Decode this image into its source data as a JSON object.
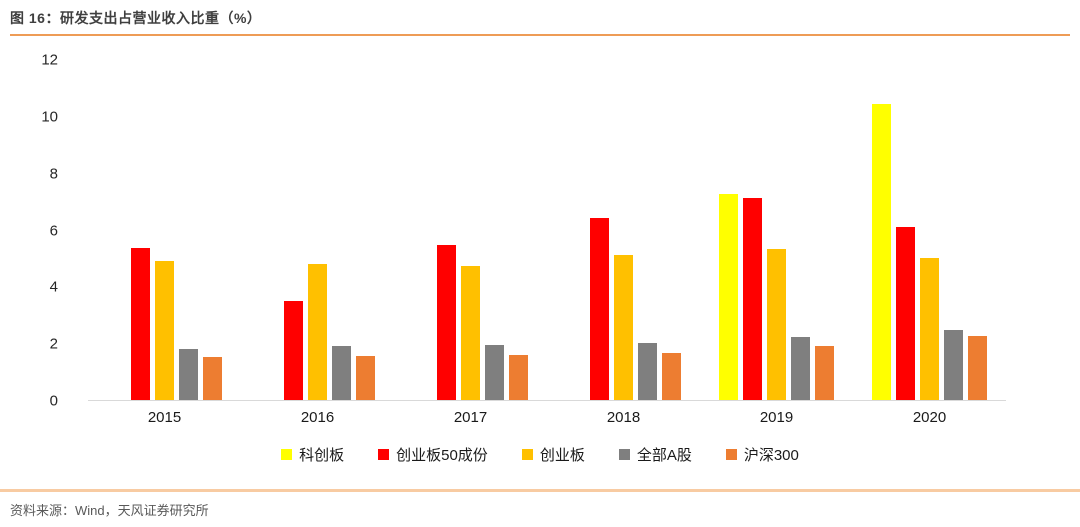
{
  "header": {
    "title": "图 16：研发支出占营业收入比重（%）"
  },
  "footer": {
    "source": "资料来源：Wind，天风证券研究所"
  },
  "colors": {
    "accent_rule_top": "#ee9c56",
    "accent_rule_bottom": "#f8cba2",
    "axis_baseline": "#d9d9d9",
    "title_text": "#3f3f3f",
    "axis_text": "#262626",
    "source_text": "#595959"
  },
  "chart_data": {
    "type": "bar",
    "title": "图 16：研发支出占营业收入比重（%）",
    "xlabel": "",
    "ylabel": "",
    "categories": [
      "2015",
      "2016",
      "2017",
      "2018",
      "2019",
      "2020"
    ],
    "series": [
      {
        "name": "科创板",
        "color": "#ffff00",
        "values": [
          null,
          null,
          null,
          null,
          7.25,
          10.4
        ]
      },
      {
        "name": "创业板50成份",
        "color": "#ff0000",
        "values": [
          5.35,
          3.5,
          5.45,
          6.4,
          7.1,
          6.1
        ]
      },
      {
        "name": "创业板",
        "color": "#ffc000",
        "values": [
          4.9,
          4.8,
          4.7,
          5.1,
          5.3,
          5.0
        ]
      },
      {
        "name": "全部A股",
        "color": "#7f7f7f",
        "values": [
          1.8,
          1.9,
          1.95,
          2.0,
          2.2,
          2.45
        ]
      },
      {
        "name": "沪深300",
        "color": "#ed7d31",
        "values": [
          1.5,
          1.55,
          1.6,
          1.65,
          1.9,
          2.25
        ]
      }
    ],
    "ylim": [
      0,
      12
    ],
    "yticks": [
      0,
      2,
      4,
      6,
      8,
      10,
      12
    ],
    "grid": false,
    "legend_position": "bottom"
  }
}
